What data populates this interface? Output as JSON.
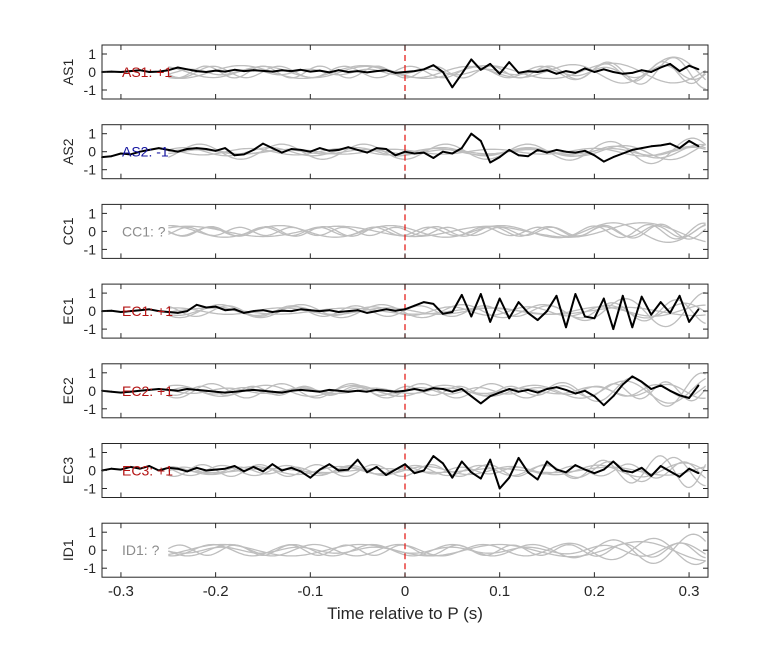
{
  "chart_data": {
    "type": "line",
    "xlabel": "Time relative to P (s)",
    "xlim": [
      -0.32,
      0.32
    ],
    "xticks": [
      -0.3,
      -0.2,
      -0.1,
      0,
      0.1,
      0.2,
      0.3
    ],
    "xtick_labels": [
      "-0.3",
      "-0.2",
      "-0.1",
      "0",
      "0.1",
      "0.2",
      "0.3"
    ],
    "ylim": [
      -1.5,
      1.5
    ],
    "yticks": [
      1,
      0,
      -1
    ],
    "ytick_labels": [
      "1",
      "0",
      "-1"
    ],
    "marker_x": 0,
    "colors": {
      "trace": "#000000",
      "background": "#bebebe",
      "marker": "#e4211c",
      "positive": "#b41414",
      "negative": "#1414a0",
      "unknown": "#8c8c8c"
    },
    "panels": [
      {
        "ylabel": "AS1",
        "annotation": "AS1: +1",
        "annotation_color": "#b41414",
        "x": [
          -0.32,
          -0.31,
          -0.3,
          -0.29,
          -0.28,
          -0.27,
          -0.26,
          -0.25,
          -0.24,
          -0.23,
          -0.22,
          -0.21,
          -0.2,
          -0.19,
          -0.18,
          -0.17,
          -0.16,
          -0.15,
          -0.14,
          -0.13,
          -0.12,
          -0.11,
          -0.1,
          -0.09,
          -0.08,
          -0.07,
          -0.06,
          -0.05,
          -0.04,
          -0.03,
          -0.02,
          -0.01,
          0,
          0.01,
          0.02,
          0.03,
          0.04,
          0.05,
          0.06,
          0.07,
          0.08,
          0.09,
          0.1,
          0.11,
          0.12,
          0.13,
          0.14,
          0.15,
          0.16,
          0.17,
          0.18,
          0.19,
          0.2,
          0.21,
          0.22,
          0.23,
          0.24,
          0.25,
          0.26,
          0.27,
          0.28,
          0.29,
          0.3,
          0.31
        ],
        "y": [
          0.0,
          0.02,
          0.0,
          0.05,
          0.1,
          0.0,
          0.02,
          0.1,
          0.25,
          0.15,
          0.05,
          0.0,
          0.08,
          0.02,
          0.12,
          0.05,
          0.1,
          0.06,
          0.02,
          0.1,
          0.05,
          0.12,
          0.02,
          0.08,
          -0.02,
          0.1,
          0.0,
          0.05,
          -0.02,
          0.05,
          0.1,
          -0.05,
          0.0,
          0.05,
          0.15,
          0.38,
          0.0,
          -0.85,
          -0.1,
          0.7,
          0.12,
          0.45,
          -0.1,
          0.55,
          -0.05,
          0.05,
          0.0,
          0.1,
          -0.1,
          0.05,
          -0.05,
          0.2,
          0.0,
          0.15,
          0.0,
          -0.1,
          -0.05,
          0.1,
          0.0,
          0.25,
          0.45,
          0.05,
          0.35,
          0.15
        ]
      },
      {
        "ylabel": "AS2",
        "annotation": "AS2: -1",
        "annotation_color": "#1414a0",
        "x": [
          -0.32,
          -0.31,
          -0.3,
          -0.29,
          -0.28,
          -0.27,
          -0.26,
          -0.25,
          -0.24,
          -0.23,
          -0.22,
          -0.21,
          -0.2,
          -0.19,
          -0.18,
          -0.17,
          -0.16,
          -0.15,
          -0.14,
          -0.13,
          -0.12,
          -0.11,
          -0.1,
          -0.09,
          -0.08,
          -0.07,
          -0.06,
          -0.05,
          -0.04,
          -0.03,
          -0.02,
          -0.01,
          0,
          0.01,
          0.02,
          0.03,
          0.04,
          0.05,
          0.06,
          0.07,
          0.08,
          0.09,
          0.1,
          0.11,
          0.12,
          0.13,
          0.14,
          0.15,
          0.16,
          0.17,
          0.18,
          0.19,
          0.2,
          0.21,
          0.22,
          0.23,
          0.24,
          0.25,
          0.26,
          0.27,
          0.28,
          0.29,
          0.3,
          0.31
        ],
        "y": [
          -0.3,
          -0.25,
          -0.1,
          -0.15,
          0.0,
          0.1,
          0.2,
          0.1,
          0.0,
          0.15,
          0.2,
          0.15,
          0.05,
          0.2,
          -0.2,
          -0.15,
          0.1,
          0.45,
          0.2,
          -0.05,
          0.15,
          0.1,
          0.0,
          0.2,
          0.05,
          0.1,
          0.25,
          0.1,
          -0.05,
          0.2,
          0.15,
          -0.2,
          0.0,
          -0.1,
          -0.05,
          -0.35,
          0.0,
          -0.1,
          0.2,
          1.0,
          0.6,
          -0.6,
          -0.3,
          0.1,
          -0.2,
          -0.25,
          0.1,
          -0.05,
          0.1,
          0.0,
          -0.05,
          0.05,
          -0.2,
          -0.55,
          -0.3,
          -0.1,
          0.1,
          0.2,
          0.3,
          0.35,
          0.45,
          0.2,
          0.6,
          0.3
        ]
      },
      {
        "ylabel": "CC1",
        "annotation": "CC1: ?",
        "annotation_color": "#8c8c8c",
        "x": [],
        "y": []
      },
      {
        "ylabel": "EC1",
        "annotation": "EC1: +1",
        "annotation_color": "#b41414",
        "x": [
          -0.32,
          -0.31,
          -0.3,
          -0.29,
          -0.28,
          -0.27,
          -0.26,
          -0.25,
          -0.24,
          -0.23,
          -0.22,
          -0.21,
          -0.2,
          -0.19,
          -0.18,
          -0.17,
          -0.16,
          -0.15,
          -0.14,
          -0.13,
          -0.12,
          -0.11,
          -0.1,
          -0.09,
          -0.08,
          -0.07,
          -0.06,
          -0.05,
          -0.04,
          -0.03,
          -0.02,
          -0.01,
          0,
          0.01,
          0.02,
          0.03,
          0.04,
          0.05,
          0.06,
          0.07,
          0.08,
          0.09,
          0.1,
          0.11,
          0.12,
          0.13,
          0.14,
          0.15,
          0.16,
          0.17,
          0.18,
          0.19,
          0.2,
          0.21,
          0.22,
          0.23,
          0.24,
          0.25,
          0.26,
          0.27,
          0.28,
          0.29,
          0.3,
          0.31
        ],
        "y": [
          0.0,
          0.02,
          -0.05,
          0.0,
          0.05,
          0.1,
          0.0,
          -0.05,
          -0.1,
          0.0,
          0.35,
          0.2,
          0.25,
          0.05,
          0.1,
          -0.1,
          0.0,
          0.05,
          -0.05,
          0.02,
          0.0,
          0.1,
          0.05,
          0.0,
          0.05,
          -0.05,
          0.0,
          0.05,
          -0.1,
          0.0,
          0.1,
          0.02,
          0.1,
          0.3,
          0.5,
          0.4,
          -0.15,
          -0.05,
          0.9,
          -0.3,
          0.95,
          -0.6,
          0.7,
          -0.4,
          0.5,
          -0.1,
          -0.5,
          0.0,
          0.85,
          -0.9,
          0.95,
          -0.3,
          -0.4,
          0.7,
          -1.0,
          0.85,
          -0.9,
          0.8,
          -0.2,
          0.5,
          -0.1,
          0.85,
          -0.6,
          0.1
        ]
      },
      {
        "ylabel": "EC2",
        "annotation": "EC2: +1",
        "annotation_color": "#b41414",
        "x": [
          -0.32,
          -0.31,
          -0.3,
          -0.29,
          -0.28,
          -0.27,
          -0.26,
          -0.25,
          -0.24,
          -0.23,
          -0.22,
          -0.21,
          -0.2,
          -0.19,
          -0.18,
          -0.17,
          -0.16,
          -0.15,
          -0.14,
          -0.13,
          -0.12,
          -0.11,
          -0.1,
          -0.09,
          -0.08,
          -0.07,
          -0.06,
          -0.05,
          -0.04,
          -0.03,
          -0.02,
          -0.01,
          0,
          0.01,
          0.02,
          0.03,
          0.04,
          0.05,
          0.06,
          0.07,
          0.08,
          0.09,
          0.1,
          0.11,
          0.12,
          0.13,
          0.14,
          0.15,
          0.16,
          0.17,
          0.18,
          0.19,
          0.2,
          0.21,
          0.22,
          0.23,
          0.24,
          0.25,
          0.26,
          0.27,
          0.28,
          0.29,
          0.3,
          0.31
        ],
        "y": [
          0.0,
          -0.05,
          -0.1,
          -0.05,
          0.0,
          0.05,
          0.1,
          0.05,
          0.0,
          0.1,
          0.05,
          0.0,
          -0.05,
          -0.1,
          -0.05,
          0.0,
          0.05,
          0.0,
          -0.05,
          -0.1,
          0.0,
          0.05,
          0.0,
          -0.05,
          0.05,
          0.0,
          -0.05,
          0.0,
          -0.05,
          0.05,
          0.0,
          -0.05,
          0.0,
          0.1,
          0.0,
          0.15,
          0.1,
          -0.05,
          0.1,
          -0.3,
          -0.7,
          -0.3,
          -0.1,
          0.1,
          -0.05,
          0.05,
          -0.1,
          0.1,
          0.2,
          0.05,
          -0.15,
          0.0,
          -0.3,
          -0.8,
          -0.3,
          0.35,
          0.8,
          0.5,
          0.1,
          0.3,
          0.0,
          -0.25,
          -0.4,
          0.3
        ]
      },
      {
        "ylabel": "EC3",
        "annotation": "EC3: +1",
        "annotation_color": "#b41414",
        "x": [
          -0.32,
          -0.31,
          -0.3,
          -0.29,
          -0.28,
          -0.27,
          -0.26,
          -0.25,
          -0.24,
          -0.23,
          -0.22,
          -0.21,
          -0.2,
          -0.19,
          -0.18,
          -0.17,
          -0.16,
          -0.15,
          -0.14,
          -0.13,
          -0.12,
          -0.11,
          -0.1,
          -0.09,
          -0.08,
          -0.07,
          -0.06,
          -0.05,
          -0.04,
          -0.03,
          -0.02,
          -0.01,
          0,
          0.01,
          0.02,
          0.03,
          0.04,
          0.05,
          0.06,
          0.07,
          0.08,
          0.09,
          0.1,
          0.11,
          0.12,
          0.13,
          0.14,
          0.15,
          0.16,
          0.17,
          0.18,
          0.19,
          0.2,
          0.21,
          0.22,
          0.23,
          0.24,
          0.25,
          0.26,
          0.27,
          0.28,
          0.29,
          0.3,
          0.31
        ],
        "y": [
          0.0,
          0.1,
          0.05,
          0.2,
          0.1,
          0.25,
          0.0,
          0.15,
          0.1,
          -0.05,
          0.15,
          0.0,
          0.05,
          0.1,
          0.25,
          -0.05,
          0.2,
          -0.05,
          0.35,
          0.0,
          0.15,
          -0.05,
          -0.4,
          0.05,
          0.35,
          0.0,
          0.05,
          0.6,
          -0.1,
          0.2,
          -0.25,
          0.05,
          0.35,
          -0.15,
          0.0,
          0.8,
          0.4,
          -0.4,
          0.5,
          -0.1,
          -0.45,
          0.6,
          -1.0,
          -0.4,
          0.7,
          -0.1,
          -0.5,
          0.5,
          0.05,
          -0.1,
          0.3,
          0.05,
          -0.15,
          0.05,
          0.5,
          0.0,
          -0.1,
          0.15,
          -0.3,
          0.25,
          -0.05,
          -0.35,
          0.1,
          -0.15
        ]
      },
      {
        "ylabel": "ID1",
        "annotation": "ID1: ?",
        "annotation_color": "#8c8c8c",
        "x": [],
        "y": []
      }
    ]
  }
}
